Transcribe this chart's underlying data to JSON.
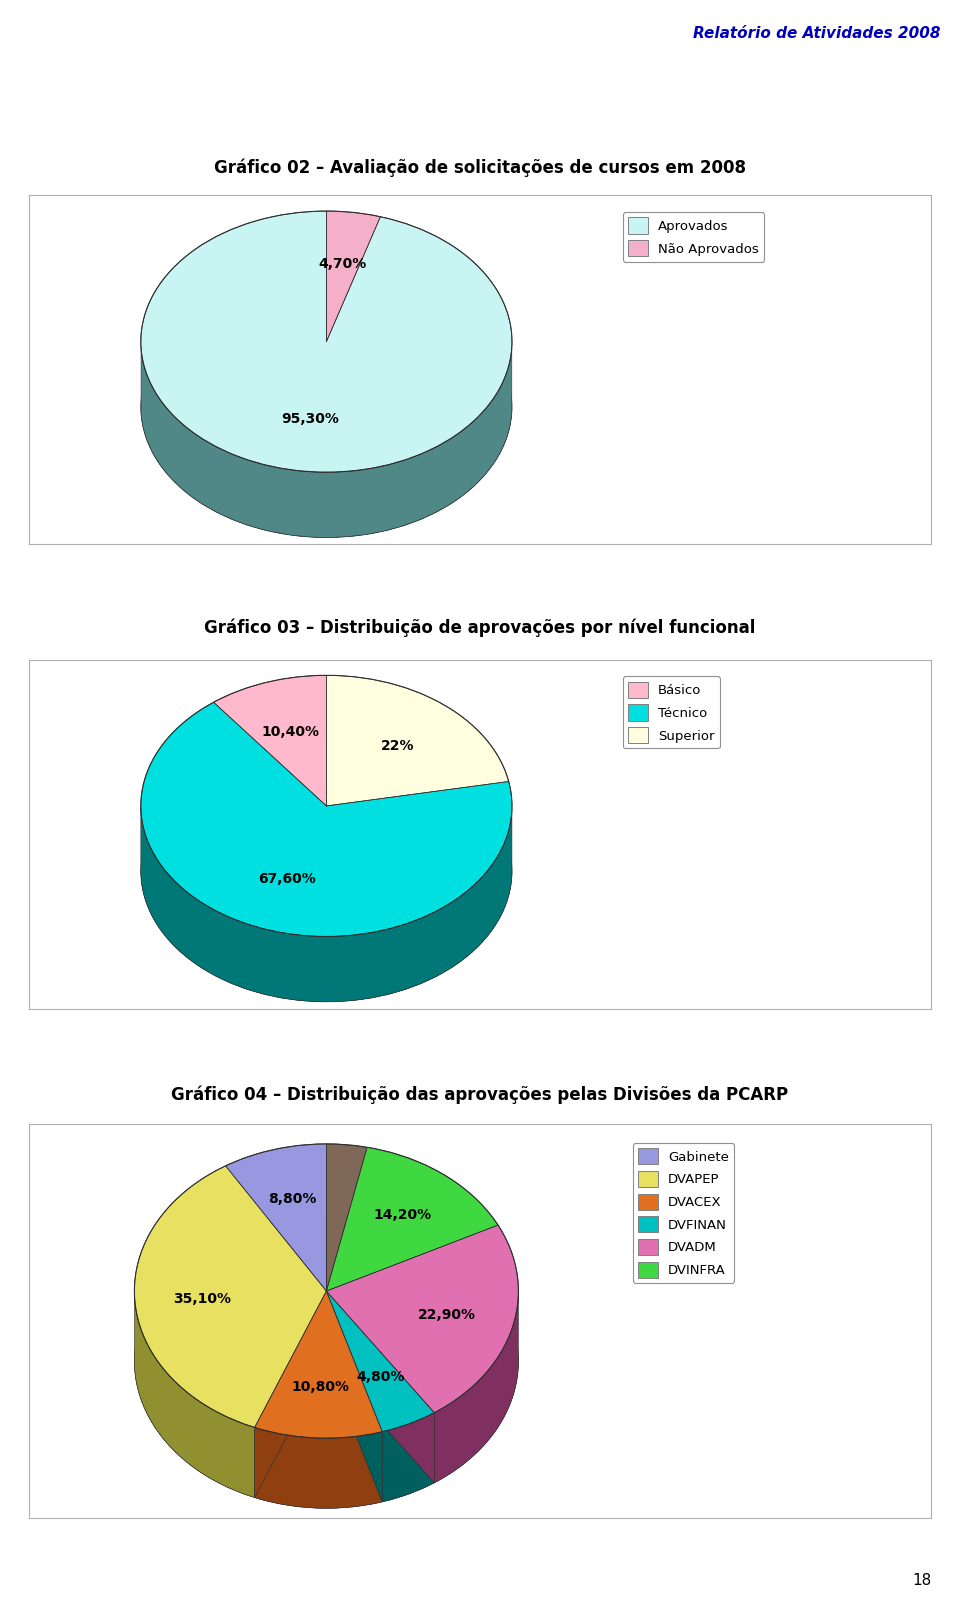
{
  "header_title": "Relatório de Atividades 2008",
  "page_number": "18",
  "background_color": "#ffffff",
  "chart1_title": "Gráfico 02 – Avaliação de solicitações de cursos em 2008",
  "chart1_slices": [
    95.3,
    4.7
  ],
  "chart1_labels": [
    "95,30%",
    "4,70%"
  ],
  "chart1_colors": [
    "#c8f4f4",
    "#f4b0c8"
  ],
  "chart1_side_colors": [
    "#508888",
    "#a06878"
  ],
  "chart1_legend": [
    "Aprovados",
    "Não Aprovados"
  ],
  "chart1_legend_colors": [
    "#c8f4f4",
    "#f4b0c8"
  ],
  "chart1_startangle": 90,
  "chart2_title": "Gráfico 03 – Distribuição de aprovações por nível funcional",
  "chart2_slices": [
    10.4,
    67.6,
    22.0
  ],
  "chart2_labels": [
    "10,40%",
    "67,60%",
    "22%"
  ],
  "chart2_colors": [
    "#ffb8cc",
    "#00e0e0",
    "#ffffe0"
  ],
  "chart2_side_colors": [
    "#a06080",
    "#007878",
    "#a0a060"
  ],
  "chart2_legend": [
    "Básico",
    "Técnico",
    "Superior"
  ],
  "chart2_legend_colors": [
    "#ffb8cc",
    "#00e0e0",
    "#ffffe0"
  ],
  "chart2_startangle": 90,
  "chart3_title": "Gráfico 04 – Distribuição das aprovações pelas Divisões da PCARP",
  "chart3_slices": [
    8.8,
    35.1,
    10.8,
    4.8,
    22.9,
    14.2,
    3.4
  ],
  "chart3_labels": [
    "8,80%",
    "35,10%",
    "10,80%",
    "4,80%",
    "22,90%",
    "14,20%",
    ""
  ],
  "chart3_colors": [
    "#9898e0",
    "#e8e060",
    "#e07020",
    "#00c0c0",
    "#e070b0",
    "#40d840",
    "#806858"
  ],
  "chart3_side_colors": [
    "#505090",
    "#909030",
    "#904010",
    "#006060",
    "#803060",
    "#208020",
    "#403428"
  ],
  "chart3_legend": [
    "Gabinete",
    "DVAPEP",
    "DVACEX",
    "DVFINAN",
    "DVADM",
    "DVINFRA"
  ],
  "chart3_legend_colors": [
    "#9898e0",
    "#e8e060",
    "#e07020",
    "#00c0c0",
    "#e070b0",
    "#40d840"
  ],
  "chart3_startangle": 90
}
